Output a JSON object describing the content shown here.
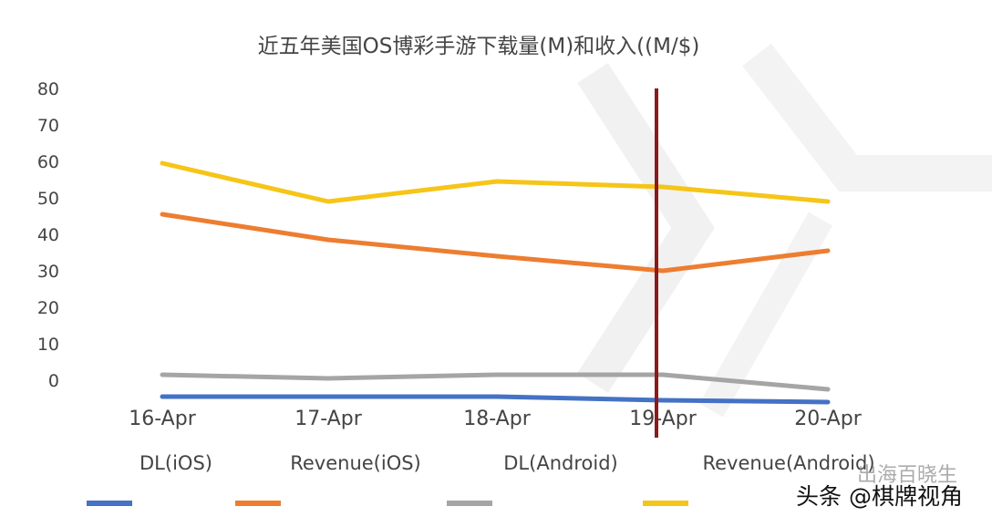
{
  "chart_data": {
    "type": "line",
    "title": "近五年美国OS博彩手游下载量(M)和收入((M/$)",
    "xlabel": "",
    "ylabel": "",
    "categories": [
      "16-Apr",
      "17-Apr",
      "18-Apr",
      "19-Apr",
      "20-Apr"
    ],
    "yticks": [
      "80",
      "70",
      "60",
      "50",
      "40",
      "30",
      "20",
      "10",
      "0"
    ],
    "ylim": [
      -5,
      80
    ],
    "grid": false,
    "legend_position": "bottom",
    "series": [
      {
        "name": "DL(iOS)",
        "color": "#4472C4",
        "values": [
          -4.5,
          -4.5,
          -4.5,
          -5.5,
          -6
        ]
      },
      {
        "name": "Revenue(iOS)",
        "color": "#ED7D31",
        "values": [
          45.5,
          38.5,
          34,
          30,
          35.5
        ]
      },
      {
        "name": "DL(Android)",
        "color": "#A5A5A5",
        "values": [
          1.5,
          0.5,
          1.5,
          1.5,
          -2.5
        ]
      },
      {
        "name": "Revenue(Android)",
        "color": "#F5C518",
        "values": [
          59.5,
          49,
          54.5,
          53,
          49
        ]
      }
    ],
    "marker_line_color": "#8B1A1A"
  },
  "watermark": "头条 @棋牌视角",
  "watermark2": "出海百晓生"
}
